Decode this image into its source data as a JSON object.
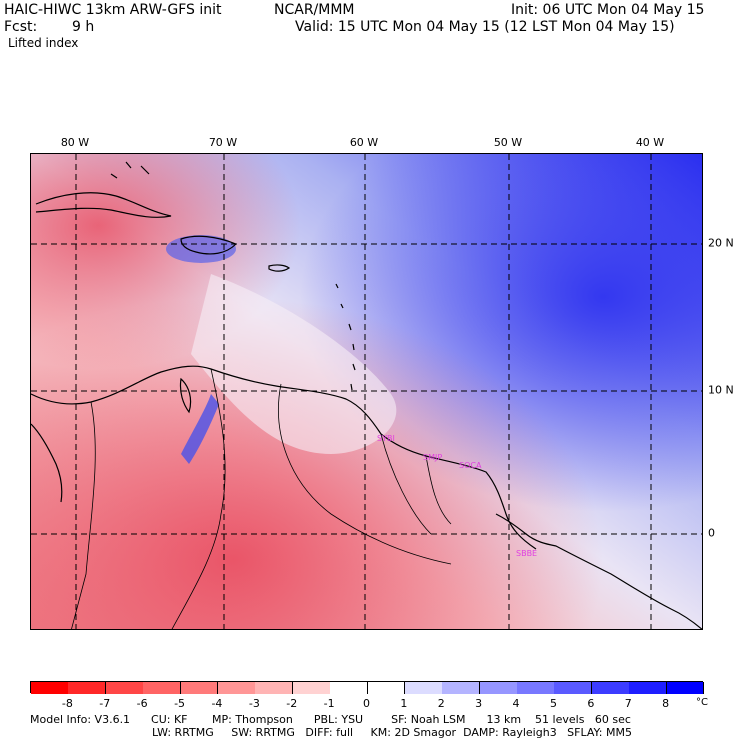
{
  "header": {
    "model_line": "HAIC-HIWC 13km ARW-GFS init",
    "agency": "NCAR/MMM",
    "init": "Init: 06 UTC Mon 04 May 15",
    "fcst_label": "Fcst:",
    "fcst_value": "9 h",
    "valid": "Valid: 15 UTC Mon 04 May 15 (12 LST Mon 04 May 15)",
    "field": "Lifted index"
  },
  "map": {
    "lon_labels": [
      "80 W",
      "70 W",
      "60 W",
      "50 W",
      "40 W"
    ],
    "lat_labels": [
      "20 N",
      "10 N",
      "0"
    ],
    "stations": [
      "SYBI",
      "SMJP",
      "SOCA",
      "SBBE"
    ],
    "colors": {
      "negative_strong": "#e8455a",
      "negative_mid": "#f08a90",
      "neutral": "#fbf0f2",
      "positive_light": "#c9cdf6",
      "positive_mid": "#7d86ee",
      "positive_strong": "#2a2ef0",
      "station_text": "#e040e0"
    }
  },
  "colorbar": {
    "ticks": [
      "-8",
      "-7",
      "-6",
      "-5",
      "-4",
      "-3",
      "-2",
      "-1",
      "0",
      "1",
      "2",
      "3",
      "4",
      "5",
      "6",
      "7",
      "8"
    ],
    "unit": "°C",
    "colors": [
      "#ff0000",
      "#ff2828",
      "#ff4646",
      "#ff6464",
      "#ff7a7a",
      "#ff9696",
      "#ffb4b4",
      "#ffd2d2",
      "#ffffff",
      "#ffffff",
      "#dcdcff",
      "#b4b4ff",
      "#9696ff",
      "#7878ff",
      "#5a5aff",
      "#3c3cff",
      "#1e1eff",
      "#0000ff"
    ]
  },
  "footer": {
    "line1": "Model Info: V3.6.1      CU: KF       MP: Thompson      PBL: YSU        SF: Noah LSM      13 km    51 levels   60 sec",
    "line2": "LW: RRTMG     SW: RRTMG   DIFF: full     KM: 2D Smagor  DAMP: Rayleigh3   SFLAY: MM5"
  }
}
